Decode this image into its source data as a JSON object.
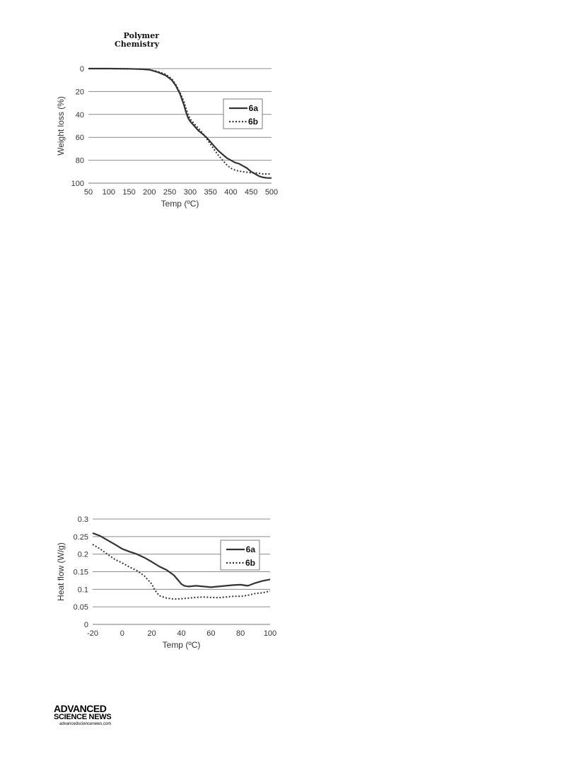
{
  "journal": {
    "line1": "Polymer",
    "line2": "Chemistry"
  },
  "publisher_logo": {
    "line1": "ADVANCED",
    "line2": "SCIENCE NEWS",
    "line3": "advancedsciencenews.com"
  },
  "colors": {
    "axis": "#7a7a7a",
    "grid": "#8c8c8c",
    "series": "#333333",
    "text": "#333333"
  },
  "chart_data": [
    {
      "type": "line",
      "xlabel": "Temp (ºC)",
      "ylabel": "Weight loss (%)",
      "xlim": [
        50,
        500
      ],
      "ylim": [
        0,
        100
      ],
      "y_inverted": true,
      "xticks": [
        50,
        100,
        150,
        200,
        250,
        300,
        350,
        400,
        450,
        500
      ],
      "yticks": [
        0,
        20,
        40,
        60,
        80,
        100
      ],
      "grid": "horizontal",
      "legend_position": "right",
      "series": [
        {
          "name": "6a",
          "style": "solid",
          "x": [
            50,
            100,
            150,
            180,
            200,
            220,
            240,
            255,
            265,
            275,
            285,
            290,
            295,
            300,
            310,
            320,
            330,
            340,
            350,
            360,
            370,
            380,
            390,
            400,
            410,
            420,
            430,
            440,
            450,
            460,
            470,
            480,
            490,
            500
          ],
          "y": [
            0,
            0,
            0.2,
            0.5,
            1,
            3,
            6,
            10,
            15,
            22,
            32,
            38,
            43,
            46,
            50,
            54,
            57,
            60,
            64,
            68,
            72,
            75,
            78,
            80,
            82,
            83,
            85,
            87,
            90,
            92,
            94,
            95,
            95.5,
            95.5
          ]
        },
        {
          "name": "6b",
          "style": "dotted",
          "x": [
            50,
            100,
            150,
            180,
            200,
            220,
            240,
            255,
            265,
            275,
            285,
            290,
            295,
            300,
            310,
            320,
            330,
            340,
            350,
            360,
            370,
            380,
            390,
            400,
            410,
            420,
            430,
            440,
            450,
            460,
            470,
            480,
            490,
            500
          ],
          "y": [
            0,
            0,
            0.2,
            0.5,
            1,
            2.5,
            5,
            9,
            14,
            21,
            29,
            35,
            40,
            44,
            48,
            52,
            56,
            61,
            66,
            71,
            76,
            80,
            84,
            87,
            88.5,
            89.5,
            90,
            90.5,
            91,
            91,
            91.5,
            92,
            92,
            92
          ]
        }
      ]
    },
    {
      "type": "line",
      "xlabel": "Temp (ºC)",
      "ylabel": "Heat flow (W/g)",
      "xlim": [
        -20,
        100
      ],
      "ylim": [
        0,
        0.3
      ],
      "xticks": [
        -20,
        0,
        20,
        40,
        60,
        80,
        100
      ],
      "yticks": [
        0,
        0.05,
        0.1,
        0.15,
        0.2,
        0.25,
        0.3
      ],
      "grid": "horizontal",
      "legend_position": "right",
      "series": [
        {
          "name": "6a",
          "style": "solid",
          "x": [
            -20,
            -15,
            -10,
            -5,
            0,
            5,
            10,
            15,
            20,
            25,
            30,
            35,
            38,
            40,
            42,
            45,
            50,
            55,
            60,
            65,
            70,
            75,
            80,
            85,
            90,
            95,
            100
          ],
          "y": [
            0.26,
            0.252,
            0.24,
            0.228,
            0.215,
            0.207,
            0.2,
            0.19,
            0.178,
            0.165,
            0.155,
            0.14,
            0.125,
            0.115,
            0.11,
            0.108,
            0.11,
            0.108,
            0.106,
            0.108,
            0.11,
            0.112,
            0.113,
            0.11,
            0.118,
            0.124,
            0.128
          ]
        },
        {
          "name": "6b",
          "style": "dotted",
          "x": [
            -20,
            -15,
            -10,
            -5,
            0,
            5,
            10,
            15,
            20,
            22,
            25,
            30,
            35,
            40,
            45,
            50,
            55,
            60,
            65,
            70,
            75,
            80,
            85,
            90,
            95,
            100
          ],
          "y": [
            0.228,
            0.215,
            0.2,
            0.185,
            0.175,
            0.163,
            0.153,
            0.138,
            0.115,
            0.098,
            0.082,
            0.075,
            0.072,
            0.073,
            0.075,
            0.077,
            0.078,
            0.077,
            0.076,
            0.078,
            0.08,
            0.08,
            0.083,
            0.088,
            0.09,
            0.095
          ]
        }
      ]
    }
  ]
}
